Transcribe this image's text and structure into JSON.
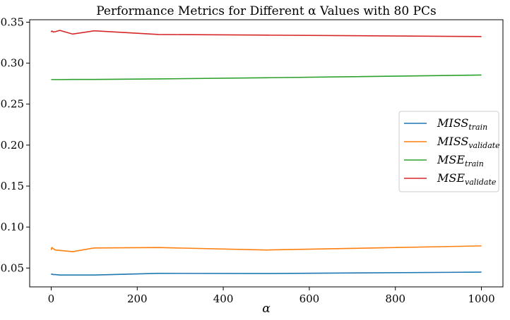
{
  "chart_data": {
    "type": "line",
    "title": "Performance Metrics for Different α Values with 80 PCs",
    "xlabel": "α",
    "ylabel": "",
    "xlim": [
      -50,
      1050
    ],
    "ylim": [
      0.027,
      0.353
    ],
    "x_ticks": [
      0,
      200,
      400,
      600,
      800,
      1000
    ],
    "y_ticks": [
      0.05,
      0.1,
      0.15,
      0.2,
      0.25,
      0.3,
      0.35
    ],
    "grid": false,
    "legend_position": "center-right",
    "series": [
      {
        "name": "MISS_train",
        "label_main": "MISS",
        "label_sub": "train",
        "color": "#1f77b4",
        "x": [
          0,
          1,
          2,
          5,
          10,
          20,
          50,
          100,
          250,
          500,
          1000
        ],
        "y": [
          0.042,
          0.0425,
          0.0425,
          0.042,
          0.042,
          0.0415,
          0.0415,
          0.0415,
          0.0435,
          0.0433,
          0.045
        ]
      },
      {
        "name": "MISS_validate",
        "label_main": "MISS",
        "label_sub": "validate",
        "color": "#ff7f0e",
        "x": [
          0,
          1,
          2,
          5,
          10,
          20,
          50,
          100,
          250,
          500,
          1000
        ],
        "y": [
          0.072,
          0.0745,
          0.075,
          0.0735,
          0.072,
          0.0715,
          0.07,
          0.0745,
          0.075,
          0.072,
          0.077
        ]
      },
      {
        "name": "MSE_train",
        "label_main": "MSE",
        "label_sub": "train",
        "color": "#2ca02c",
        "x": [
          0,
          1,
          2,
          5,
          10,
          20,
          50,
          100,
          250,
          500,
          1000
        ],
        "y": [
          0.28,
          0.28,
          0.28,
          0.28,
          0.28,
          0.28,
          0.2802,
          0.2802,
          0.2808,
          0.2822,
          0.2855
        ]
      },
      {
        "name": "MSE_validate",
        "label_main": "MSE",
        "label_sub": "validate",
        "color": "#d62728",
        "x": [
          0,
          1,
          2,
          5,
          10,
          20,
          50,
          100,
          250,
          500,
          1000
        ],
        "y": [
          0.338,
          0.339,
          0.3392,
          0.338,
          0.3385,
          0.34,
          0.3355,
          0.3395,
          0.335,
          0.3342,
          0.3325
        ]
      }
    ]
  }
}
